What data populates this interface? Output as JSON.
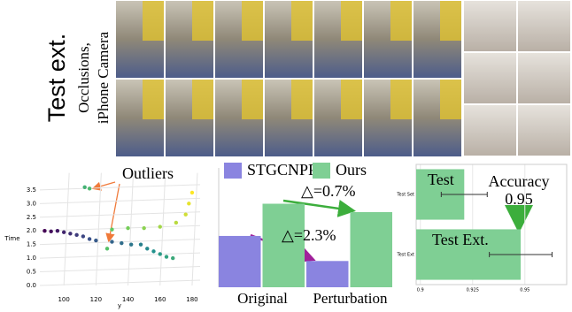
{
  "panel_label": "Test ext.",
  "panel_caption": [
    "Occlusions,",
    "iPhone Camera"
  ],
  "chart_data": [
    {
      "type": "scatter",
      "y_label": "Time",
      "x_label": "y",
      "annotation": "Outliers",
      "colormap": "viridis",
      "x": [
        88,
        92,
        96,
        100,
        104,
        108,
        112,
        116,
        120,
        130,
        136,
        142,
        148,
        152,
        156,
        160,
        164,
        168,
        113,
        116,
        127,
        130,
        140,
        150,
        160,
        170,
        176,
        178,
        180
      ],
      "values": [
        2.0,
        1.98,
        2.0,
        1.95,
        1.9,
        1.85,
        1.8,
        1.7,
        1.65,
        1.6,
        1.55,
        1.5,
        1.5,
        1.35,
        1.25,
        1.15,
        1.05,
        1.0,
        3.6,
        3.55,
        1.35,
        2.05,
        2.1,
        2.1,
        2.15,
        2.3,
        2.6,
        3.0,
        3.4
      ],
      "xlim": [
        85,
        185
      ],
      "ylim": [
        0,
        3.8
      ],
      "xticks": [
        100,
        120,
        140,
        160,
        180
      ],
      "yticks": [
        {
          "value": 0,
          "label": "0.0"
        },
        0.5,
        {
          "value": 1,
          "label": "1.0"
        },
        1.5,
        {
          "value": 2,
          "label": "2.0"
        },
        2.5,
        {
          "value": 3,
          "label": "3.0"
        },
        3.5
      ],
      "grid": true
    },
    {
      "type": "bar",
      "categories": [
        "Original",
        "Perturbation"
      ],
      "series": [
        {
          "name": "STGCNPP",
          "color": "#8a84e0",
          "values": [
            43,
            22
          ]
        },
        {
          "name": "Ours",
          "color": "#7fcf94",
          "values": [
            70,
            63
          ]
        }
      ],
      "ylim": [
        0,
        100
      ],
      "annotations": [
        "△=0.7%",
        "△=2.3%"
      ]
    },
    {
      "type": "hbar",
      "categories": [
        "Test Set",
        "Test Ext"
      ],
      "values": [
        0.921,
        0.948
      ],
      "errors": [
        0.011,
        0.015
      ],
      "color": "#7fcf94",
      "xlim": [
        0.898,
        0.97
      ],
      "xticks": [
        0.9,
        0.925,
        0.95
      ],
      "annotations": [
        "Test",
        "Accuracy",
        "0.95",
        "Test Ext."
      ],
      "grid": true
    }
  ]
}
